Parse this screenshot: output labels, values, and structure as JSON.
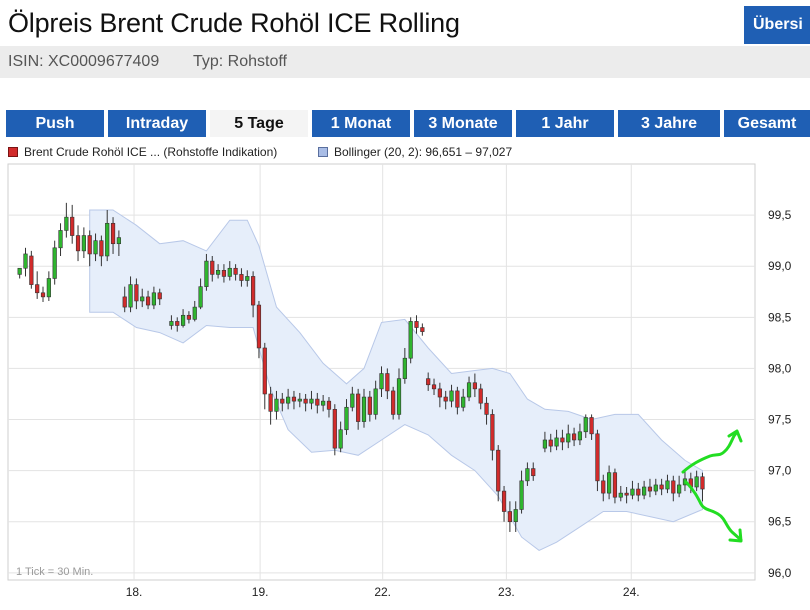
{
  "header": {
    "title": "Ölpreis Brent Crude Rohöl ICE Rolling",
    "overview_button": "Übersi",
    "isin": "ISIN: XC0009677409",
    "type": "Typ: Rohstoff"
  },
  "tabs": [
    {
      "label": "Push",
      "active": false
    },
    {
      "label": "Intraday",
      "active": false
    },
    {
      "label": "5 Tage",
      "active": true
    },
    {
      "label": "1 Monat",
      "active": false
    },
    {
      "label": "3 Monate",
      "active": false
    },
    {
      "label": "1 Jahr",
      "active": false
    },
    {
      "label": "3 Jahre",
      "active": false
    },
    {
      "label": "Gesamt",
      "active": false
    }
  ],
  "legend": {
    "price": "Brent Crude Rohöl ICE ... (Rohstoffe Indikation)",
    "bollinger": "Bollinger (20, 2): 96,651 – 97,027"
  },
  "footnote": "1 Tick = 30 Min.",
  "colors": {
    "tab_blue": "#1f5fb4",
    "up_candle": "#2fb52f",
    "down_candle": "#d22b2b",
    "band_fill": "#e6eefa",
    "band_stroke": "#b8c8e8",
    "annotation": "#22dd22"
  },
  "chart_data": {
    "type": "candlestick",
    "series": [
      {
        "name": "Brent Crude Rohöl ICE ... (Rohstoffe Indikation)"
      },
      {
        "name": "Bollinger (20, 2): 96,651 – 97,027"
      }
    ],
    "y_ticks": [
      96.0,
      96.5,
      97.0,
      97.5,
      98.0,
      98.5,
      99.0,
      99.5
    ],
    "y_tick_labels": [
      "96,0",
      "96,5",
      "97,0",
      "97,5",
      "98,0",
      "98,5",
      "99,0",
      "99,5"
    ],
    "ylim": [
      95.93,
      100.0
    ],
    "x_ticks": [
      {
        "label": "18.",
        "t": 9.8
      },
      {
        "label": "19.",
        "t": 20.6
      },
      {
        "label": "22.",
        "t": 31.1
      },
      {
        "label": "23.",
        "t": 41.7
      },
      {
        "label": "24.",
        "t": 52.4
      }
    ],
    "xlim": [
      -1.0,
      63.0
    ],
    "grid": true,
    "candles": [
      [
        0.0,
        98.92,
        98.98,
        98.98,
        98.88
      ],
      [
        0.5,
        98.98,
        99.12,
        99.18,
        98.9
      ],
      [
        1.0,
        99.1,
        98.82,
        99.15,
        98.78
      ],
      [
        1.5,
        98.82,
        98.74,
        98.95,
        98.68
      ],
      [
        2.0,
        98.74,
        98.7,
        98.8,
        98.65
      ],
      [
        2.5,
        98.7,
        98.88,
        98.95,
        98.66
      ],
      [
        3.0,
        98.88,
        99.18,
        99.25,
        98.82
      ],
      [
        3.5,
        99.18,
        99.35,
        99.42,
        99.1
      ],
      [
        4.0,
        99.35,
        99.48,
        99.62,
        99.28
      ],
      [
        4.5,
        99.48,
        99.3,
        99.6,
        99.22
      ],
      [
        5.0,
        99.3,
        99.15,
        99.4,
        99.05
      ],
      [
        5.5,
        99.15,
        99.3,
        99.38,
        99.08
      ],
      [
        6.0,
        99.3,
        99.12,
        99.35,
        99.0
      ],
      [
        6.5,
        99.12,
        99.25,
        99.32,
        99.05
      ],
      [
        7.0,
        99.25,
        99.1,
        99.3,
        99.0
      ],
      [
        7.5,
        99.1,
        99.42,
        99.55,
        99.05
      ],
      [
        8.0,
        99.42,
        99.22,
        99.48,
        99.12
      ],
      [
        8.5,
        99.22,
        99.28,
        99.35,
        99.1
      ],
      [
        9.0,
        98.7,
        98.6,
        98.8,
        98.55
      ],
      [
        9.5,
        98.6,
        98.82,
        98.9,
        98.55
      ],
      [
        10.0,
        98.82,
        98.66,
        98.88,
        98.58
      ],
      [
        10.5,
        98.66,
        98.7,
        98.78,
        98.6
      ],
      [
        11.0,
        98.7,
        98.62,
        98.76,
        98.58
      ],
      [
        11.5,
        98.62,
        98.74,
        98.8,
        98.58
      ],
      [
        12.0,
        98.74,
        98.68,
        98.78,
        98.62
      ],
      [
        13.0,
        98.42,
        98.46,
        98.52,
        98.38
      ],
      [
        13.5,
        98.46,
        98.42,
        98.5,
        98.36
      ],
      [
        14.0,
        98.42,
        98.52,
        98.58,
        98.4
      ],
      [
        14.5,
        98.52,
        98.48,
        98.56,
        98.44
      ],
      [
        15.0,
        98.48,
        98.6,
        98.66,
        98.46
      ],
      [
        15.5,
        98.6,
        98.8,
        98.88,
        98.58
      ],
      [
        16.0,
        98.8,
        99.05,
        99.12,
        98.76
      ],
      [
        16.5,
        99.05,
        98.92,
        99.1,
        98.85
      ],
      [
        17.0,
        98.92,
        98.96,
        99.02,
        98.88
      ],
      [
        17.5,
        98.96,
        98.9,
        99.02,
        98.84
      ],
      [
        18.0,
        98.9,
        98.98,
        99.05,
        98.86
      ],
      [
        18.5,
        98.98,
        98.92,
        99.02,
        98.86
      ],
      [
        19.0,
        98.92,
        98.86,
        98.98,
        98.8
      ],
      [
        19.5,
        98.86,
        98.9,
        98.96,
        98.8
      ],
      [
        20.0,
        98.9,
        98.62,
        98.95,
        98.5
      ],
      [
        20.5,
        98.62,
        98.2,
        98.66,
        98.1
      ],
      [
        21.0,
        98.2,
        97.75,
        98.25,
        97.6
      ],
      [
        21.5,
        97.75,
        97.58,
        97.82,
        97.45
      ],
      [
        22.0,
        97.58,
        97.7,
        97.78,
        97.5
      ],
      [
        22.5,
        97.7,
        97.66,
        97.76,
        97.58
      ],
      [
        23.0,
        97.66,
        97.72,
        97.8,
        97.6
      ],
      [
        23.5,
        97.72,
        97.68,
        97.78,
        97.6
      ],
      [
        24.0,
        97.68,
        97.7,
        97.76,
        97.62
      ],
      [
        24.5,
        97.7,
        97.66,
        97.75,
        97.58
      ],
      [
        25.0,
        97.66,
        97.7,
        97.78,
        97.6
      ],
      [
        25.5,
        97.7,
        97.64,
        97.76,
        97.56
      ],
      [
        26.0,
        97.64,
        97.68,
        97.74,
        97.58
      ],
      [
        26.5,
        97.68,
        97.6,
        97.72,
        97.52
      ],
      [
        27.0,
        97.6,
        97.22,
        97.65,
        97.15
      ],
      [
        27.5,
        97.22,
        97.4,
        97.48,
        97.18
      ],
      [
        28.0,
        97.4,
        97.62,
        97.7,
        97.35
      ],
      [
        28.5,
        97.62,
        97.75,
        97.82,
        97.58
      ],
      [
        29.0,
        97.75,
        97.48,
        97.8,
        97.4
      ],
      [
        29.5,
        97.48,
        97.72,
        97.8,
        97.42
      ],
      [
        30.0,
        97.72,
        97.55,
        97.78,
        97.48
      ],
      [
        30.5,
        97.55,
        97.8,
        97.88,
        97.5
      ],
      [
        31.0,
        97.8,
        97.95,
        98.02,
        97.72
      ],
      [
        31.5,
        97.95,
        97.78,
        98.0,
        97.7
      ],
      [
        32.0,
        97.78,
        97.55,
        97.82,
        97.5
      ],
      [
        32.5,
        97.55,
        97.9,
        98.0,
        97.5
      ],
      [
        33.0,
        97.9,
        98.1,
        98.2,
        97.85
      ],
      [
        33.5,
        98.1,
        98.46,
        98.5,
        98.05
      ],
      [
        34.0,
        98.46,
        98.4,
        98.52,
        98.34
      ],
      [
        34.5,
        98.4,
        98.36,
        98.44,
        98.32
      ],
      [
        35.0,
        97.9,
        97.84,
        97.96,
        97.78
      ],
      [
        35.5,
        97.84,
        97.8,
        97.9,
        97.74
      ],
      [
        36.0,
        97.8,
        97.72,
        97.86,
        97.62
      ],
      [
        36.5,
        97.72,
        97.68,
        97.78,
        97.6
      ],
      [
        37.0,
        97.68,
        97.78,
        97.84,
        97.62
      ],
      [
        37.5,
        97.78,
        97.62,
        97.82,
        97.55
      ],
      [
        38.0,
        97.62,
        97.72,
        97.8,
        97.58
      ],
      [
        38.5,
        97.72,
        97.86,
        97.92,
        97.68
      ],
      [
        39.0,
        97.86,
        97.8,
        97.95,
        97.72
      ],
      [
        39.5,
        97.8,
        97.66,
        97.85,
        97.6
      ],
      [
        40.0,
        97.66,
        97.55,
        97.72,
        97.45
      ],
      [
        40.5,
        97.55,
        97.2,
        97.6,
        97.1
      ],
      [
        41.0,
        97.2,
        96.8,
        97.25,
        96.7
      ],
      [
        41.5,
        96.8,
        96.6,
        96.85,
        96.5
      ],
      [
        42.0,
        96.6,
        96.5,
        96.7,
        96.4
      ],
      [
        42.5,
        96.5,
        96.62,
        96.7,
        96.4
      ],
      [
        43.0,
        96.62,
        96.9,
        97.0,
        96.58
      ],
      [
        43.5,
        96.9,
        97.02,
        97.08,
        96.85
      ],
      [
        44.0,
        97.02,
        96.95,
        97.08,
        96.9
      ],
      [
        45.0,
        97.22,
        97.3,
        97.38,
        97.18
      ],
      [
        45.5,
        97.3,
        97.24,
        97.36,
        97.18
      ],
      [
        46.0,
        97.24,
        97.32,
        97.4,
        97.2
      ],
      [
        46.5,
        97.32,
        97.28,
        97.4,
        97.2
      ],
      [
        47.0,
        97.28,
        97.36,
        97.45,
        97.22
      ],
      [
        47.5,
        97.36,
        97.3,
        97.42,
        97.24
      ],
      [
        48.0,
        97.3,
        97.38,
        97.46,
        97.25
      ],
      [
        48.5,
        97.38,
        97.52,
        97.55,
        97.32
      ],
      [
        49.0,
        97.52,
        97.36,
        97.55,
        97.3
      ],
      [
        49.5,
        97.36,
        96.9,
        97.4,
        96.8
      ],
      [
        50.0,
        96.9,
        96.78,
        96.96,
        96.7
      ],
      [
        50.5,
        96.78,
        96.98,
        97.05,
        96.72
      ],
      [
        51.0,
        96.98,
        96.74,
        97.02,
        96.68
      ],
      [
        51.5,
        96.74,
        96.78,
        96.85,
        96.7
      ],
      [
        52.0,
        96.78,
        96.76,
        96.84,
        96.68
      ],
      [
        52.5,
        96.76,
        96.82,
        96.9,
        96.72
      ],
      [
        53.0,
        96.82,
        96.76,
        96.88,
        96.7
      ],
      [
        53.5,
        96.76,
        96.84,
        96.9,
        96.72
      ],
      [
        54.0,
        96.84,
        96.8,
        96.92,
        96.74
      ],
      [
        54.5,
        96.8,
        96.86,
        96.92,
        96.76
      ],
      [
        55.0,
        96.86,
        96.82,
        96.92,
        96.76
      ],
      [
        55.5,
        96.82,
        96.9,
        96.96,
        96.78
      ],
      [
        56.0,
        96.9,
        96.78,
        96.95,
        96.7
      ],
      [
        56.5,
        96.78,
        96.86,
        96.95,
        96.74
      ],
      [
        57.0,
        96.86,
        96.92,
        97.0,
        96.8
      ],
      [
        57.5,
        96.92,
        96.84,
        96.98,
        96.78
      ],
      [
        58.0,
        96.84,
        96.94,
        97.0,
        96.8
      ],
      [
        58.5,
        96.94,
        96.82,
        96.98,
        96.7
      ]
    ],
    "bollinger_upper": [
      [
        6.0,
        99.55
      ],
      [
        8.0,
        99.55
      ],
      [
        10.0,
        99.4
      ],
      [
        12.0,
        99.22
      ],
      [
        14.0,
        99.25
      ],
      [
        16.0,
        99.15
      ],
      [
        18.0,
        99.45
      ],
      [
        19.5,
        99.45
      ],
      [
        20.5,
        99.2
      ],
      [
        22.0,
        98.6
      ],
      [
        24.0,
        98.35
      ],
      [
        26.0,
        98.05
      ],
      [
        28.0,
        97.85
      ],
      [
        29.5,
        98.0
      ],
      [
        31.0,
        98.45
      ],
      [
        33.0,
        98.48
      ],
      [
        35.0,
        98.2
      ],
      [
        37.0,
        97.95
      ],
      [
        39.0,
        97.98
      ],
      [
        40.5,
        98.0
      ],
      [
        42.0,
        97.95
      ],
      [
        43.5,
        97.7
      ],
      [
        45.0,
        97.6
      ],
      [
        47.0,
        97.58
      ],
      [
        49.0,
        97.5
      ],
      [
        51.0,
        97.55
      ],
      [
        53.0,
        97.55
      ],
      [
        55.0,
        97.3
      ],
      [
        57.0,
        97.1
      ],
      [
        58.5,
        97.0
      ]
    ],
    "bollinger_lower": [
      [
        6.0,
        98.55
      ],
      [
        8.0,
        98.55
      ],
      [
        10.0,
        98.4
      ],
      [
        12.0,
        98.35
      ],
      [
        14.0,
        98.25
      ],
      [
        16.0,
        98.42
      ],
      [
        18.0,
        98.4
      ],
      [
        20.0,
        98.4
      ],
      [
        21.5,
        97.8
      ],
      [
        23.0,
        97.4
      ],
      [
        25.0,
        97.18
      ],
      [
        27.0,
        97.2
      ],
      [
        29.0,
        97.15
      ],
      [
        31.0,
        97.3
      ],
      [
        33.0,
        97.45
      ],
      [
        35.0,
        97.35
      ],
      [
        37.0,
        97.15
      ],
      [
        39.0,
        97.0
      ],
      [
        41.0,
        96.75
      ],
      [
        43.0,
        96.35
      ],
      [
        44.5,
        96.22
      ],
      [
        46.0,
        96.3
      ],
      [
        48.0,
        96.45
      ],
      [
        50.0,
        96.6
      ],
      [
        52.0,
        96.6
      ],
      [
        54.0,
        96.55
      ],
      [
        56.0,
        96.5
      ],
      [
        58.5,
        96.62
      ]
    ]
  }
}
